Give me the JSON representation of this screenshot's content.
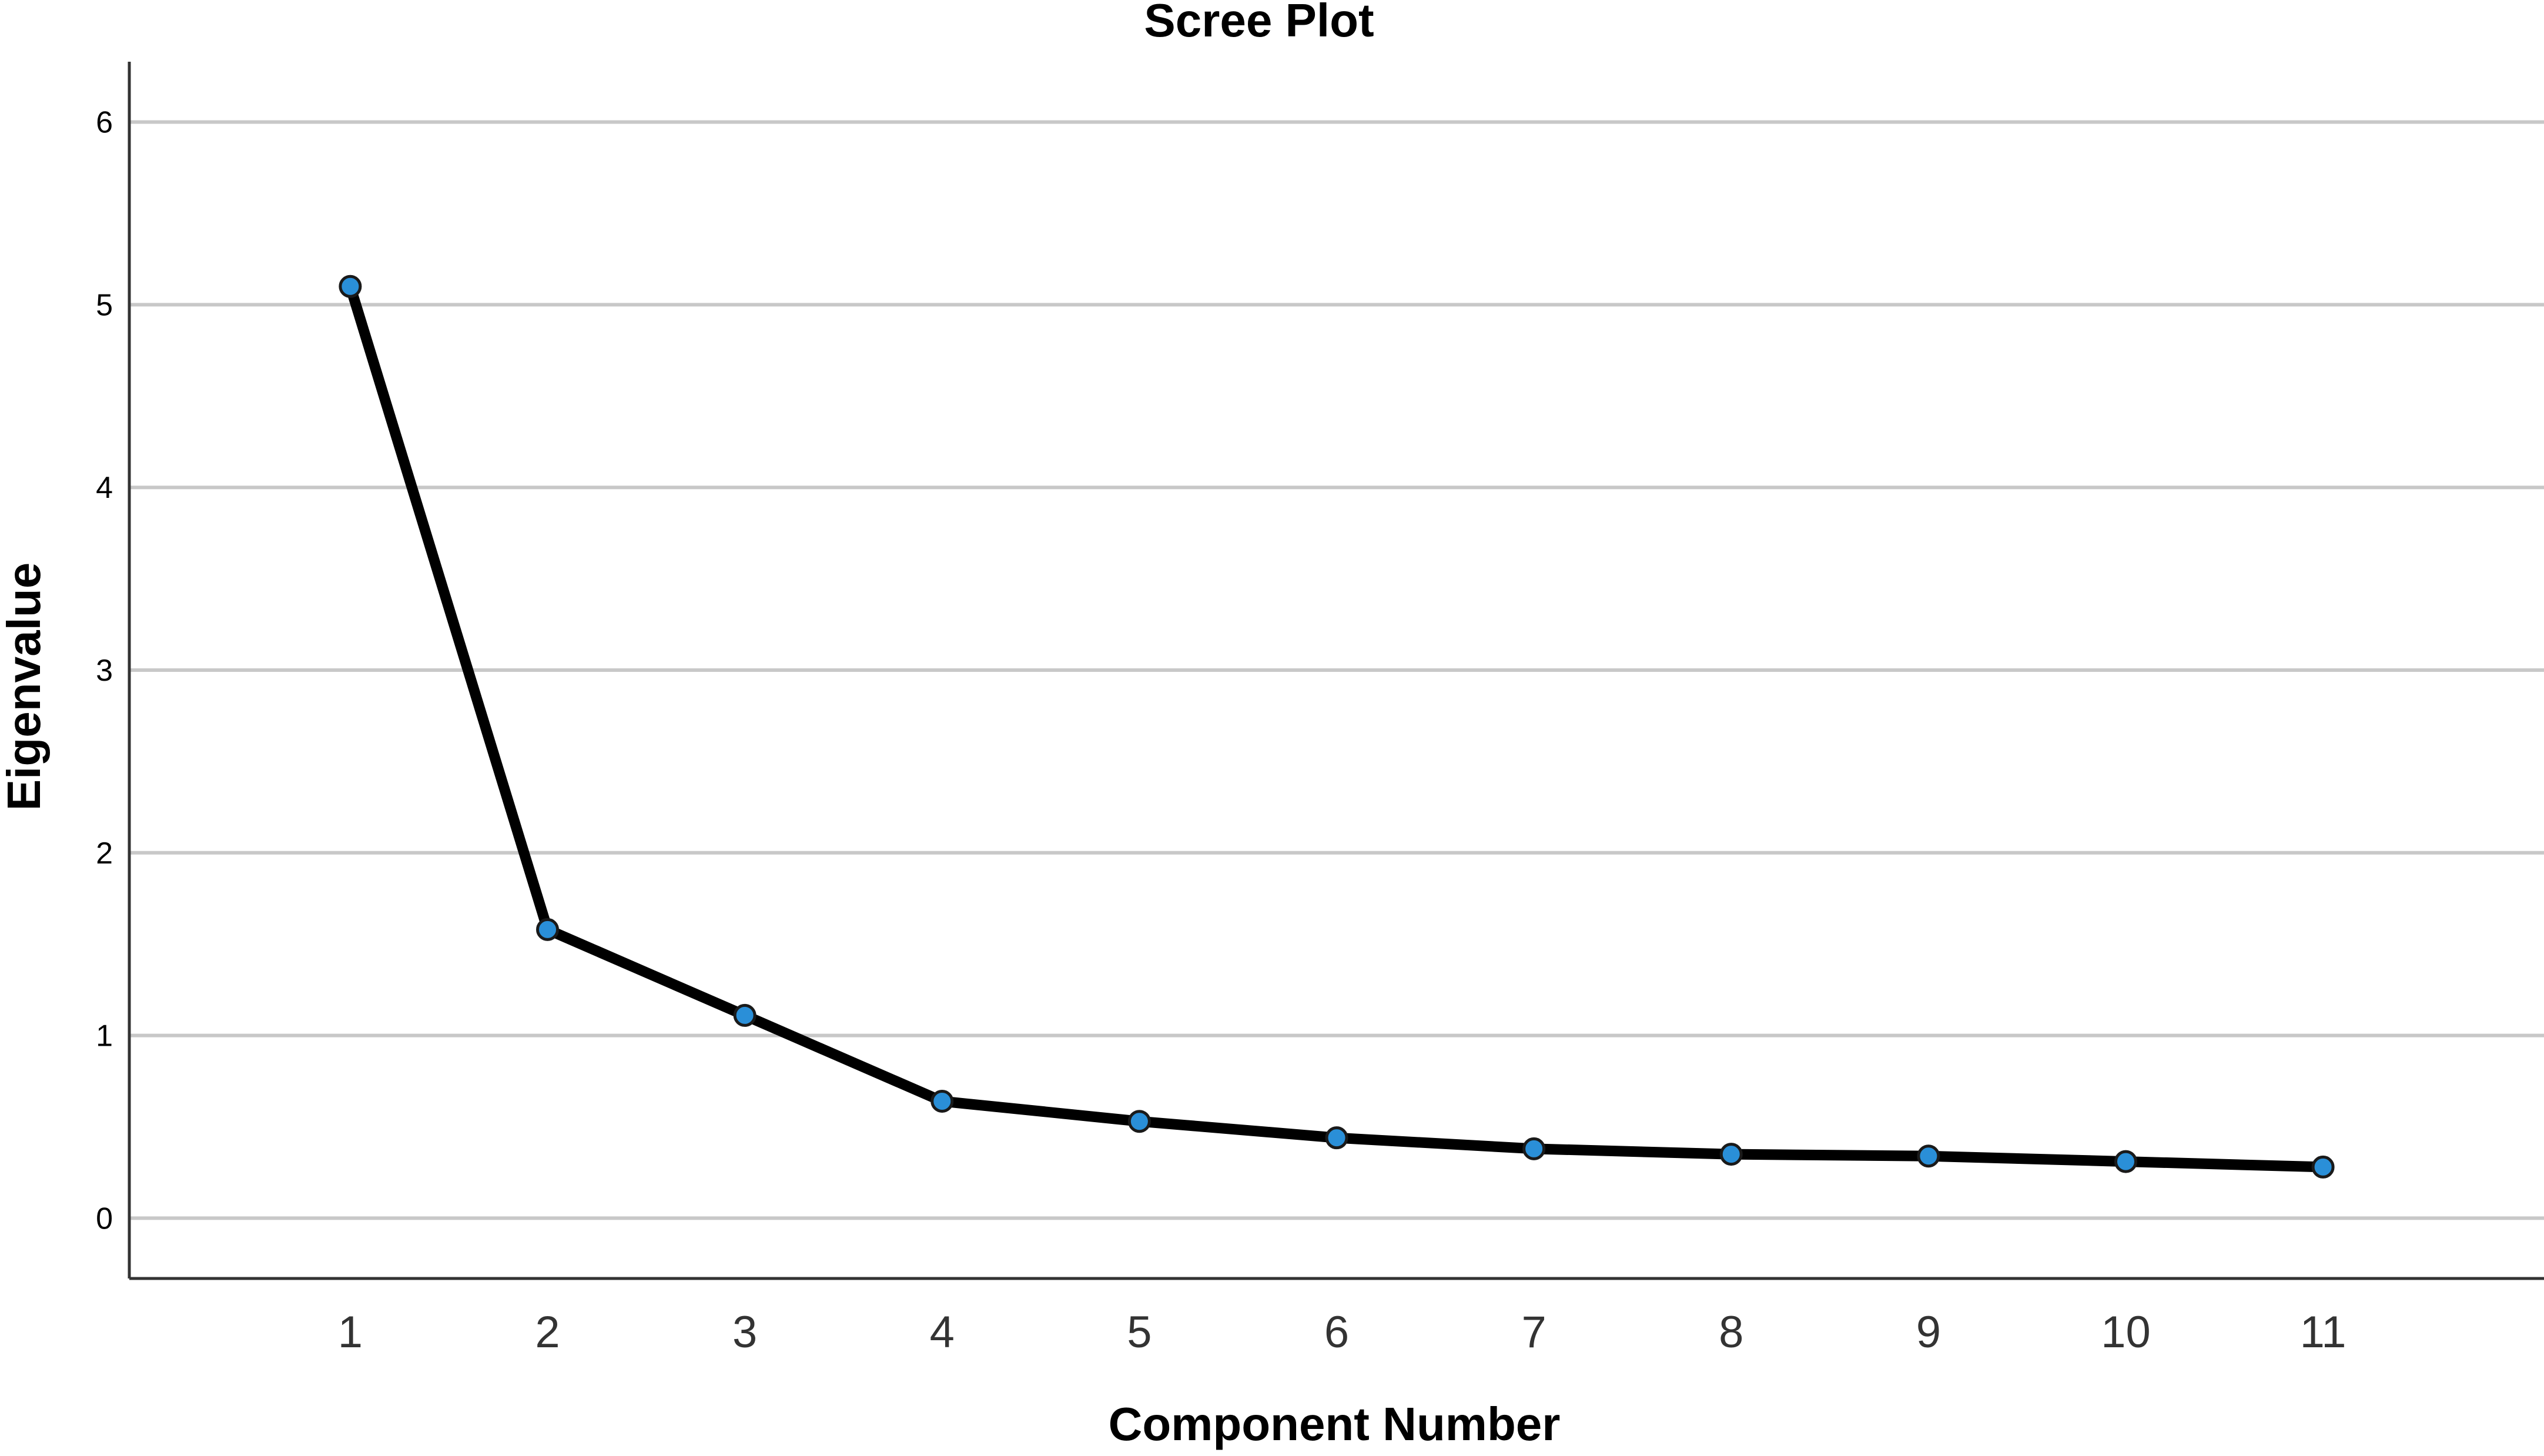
{
  "chart_data": {
    "type": "line",
    "title": "Scree Plot",
    "xlabel": "Component Number",
    "ylabel": "Eigenvalue",
    "x": [
      1,
      2,
      3,
      4,
      5,
      6,
      7,
      8,
      9,
      10,
      11
    ],
    "x_tick_labels": [
      "1",
      "2",
      "3",
      "4",
      "5",
      "6",
      "7",
      "8",
      "9",
      "10",
      "11"
    ],
    "y_tick_labels": [
      "0",
      "1",
      "2",
      "3",
      "4",
      "5",
      "6"
    ],
    "y_ticks": [
      0,
      1,
      2,
      3,
      4,
      5,
      6
    ],
    "ylim": [
      -0.33,
      6.33
    ],
    "xlim": [
      -0.12,
      12.12
    ],
    "series": [
      {
        "values": [
          5.1,
          1.58,
          1.11,
          0.64,
          0.53,
          0.44,
          0.38,
          0.35,
          0.34,
          0.31,
          0.28
        ]
      }
    ],
    "grid": true,
    "line_color": "#000000",
    "marker_color": "#2a8fd8"
  }
}
